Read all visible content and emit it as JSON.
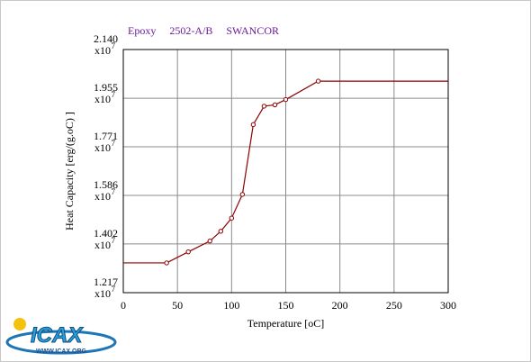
{
  "chart_data": {
    "type": "line",
    "title_parts": [
      "Epoxy",
      "2502-A/B",
      "SWANCOR"
    ],
    "xlabel": "Temperature [oC]",
    "ylabel": "Heat Capacity [erg/(g.oC) ]",
    "xlim": [
      0,
      300
    ],
    "ylim": [
      1.217,
      2.14
    ],
    "y_scale_label": "x10",
    "y_scale_exponent": "7",
    "x_ticks": [
      "0",
      "50",
      "100",
      "150",
      "200",
      "250",
      "300"
    ],
    "y_ticks": [
      "1.217",
      "1.402",
      "1.586",
      "1.771",
      "1.955",
      "2.140"
    ],
    "grid": true,
    "series": [
      {
        "x": [
          0,
          40,
          60,
          80,
          90,
          100,
          110,
          120,
          130,
          140,
          150,
          180,
          300
        ],
        "y": [
          1.33,
          1.33,
          1.372,
          1.413,
          1.45,
          1.5,
          1.59,
          1.855,
          1.925,
          1.93,
          1.95,
          2.02,
          2.02
        ],
        "markers_on": [
          40,
          60,
          80,
          90,
          100,
          110,
          120,
          130,
          140,
          150,
          180
        ],
        "color": "#8b0000"
      }
    ]
  },
  "logo": {
    "text": "ICAX",
    "url_text": "WWW.ICAX.ORG"
  }
}
